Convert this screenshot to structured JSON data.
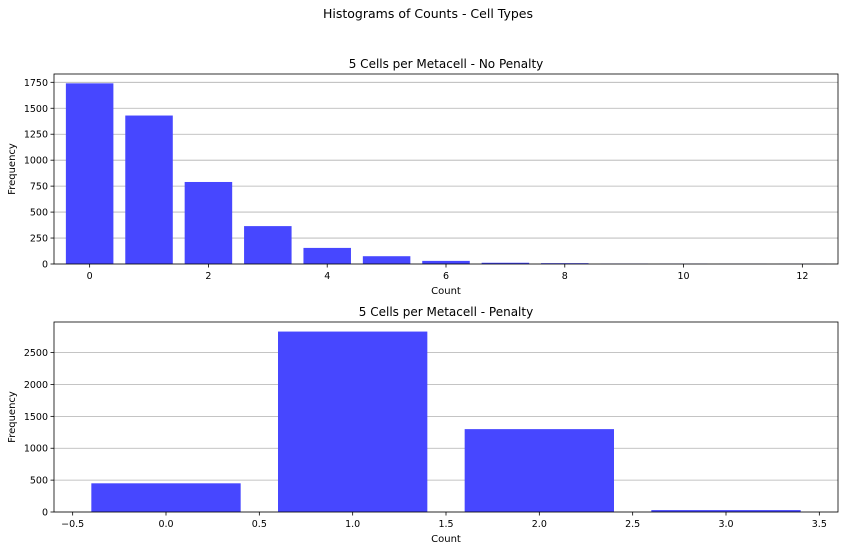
{
  "figure": {
    "suptitle": "Histograms of Counts - Cell Types"
  },
  "colors": {
    "bar": "#4747ff",
    "grid": "#b0b0b0",
    "axis": "#000000"
  },
  "chart_data": [
    {
      "type": "bar",
      "title": "5 Cells per Metacell - No Penalty",
      "xlabel": "Count",
      "ylabel": "Frequency",
      "x": [
        0,
        1,
        2,
        3,
        4,
        5,
        6,
        7,
        8,
        9,
        10,
        11,
        12
      ],
      "values": [
        1740,
        1430,
        790,
        365,
        155,
        75,
        30,
        12,
        8,
        3,
        2,
        1,
        1
      ],
      "bar_width": 0.8,
      "xlim": [
        -0.6,
        12.6
      ],
      "ylim": [
        0,
        1830
      ],
      "xticks": [
        0,
        2,
        4,
        6,
        8,
        10,
        12
      ],
      "xtick_labels": [
        "0",
        "2",
        "4",
        "6",
        "8",
        "10",
        "12"
      ],
      "yticks": [
        0,
        250,
        500,
        750,
        1000,
        1250,
        1500,
        1750
      ],
      "ytick_labels": [
        "0",
        "250",
        "500",
        "750",
        "1000",
        "1250",
        "1500",
        "1750"
      ],
      "grid": "y"
    },
    {
      "type": "bar",
      "title": "5 Cells per Metacell - Penalty",
      "xlabel": "Count",
      "ylabel": "Frequency",
      "x": [
        0,
        1,
        2,
        3
      ],
      "values": [
        450,
        2830,
        1300,
        30
      ],
      "bar_width": 0.8,
      "xlim": [
        -0.6,
        3.6
      ],
      "ylim": [
        0,
        2980
      ],
      "xticks": [
        -0.5,
        0,
        0.5,
        1,
        1.5,
        2,
        2.5,
        3,
        3.5
      ],
      "xtick_labels": [
        "−0.5",
        "0.0",
        "0.5",
        "1.0",
        "1.5",
        "2.0",
        "2.5",
        "3.0",
        "3.5"
      ],
      "yticks": [
        0,
        500,
        1000,
        1500,
        2000,
        2500
      ],
      "ytick_labels": [
        "0",
        "500",
        "1000",
        "1500",
        "2000",
        "2500"
      ],
      "grid": "y"
    }
  ]
}
